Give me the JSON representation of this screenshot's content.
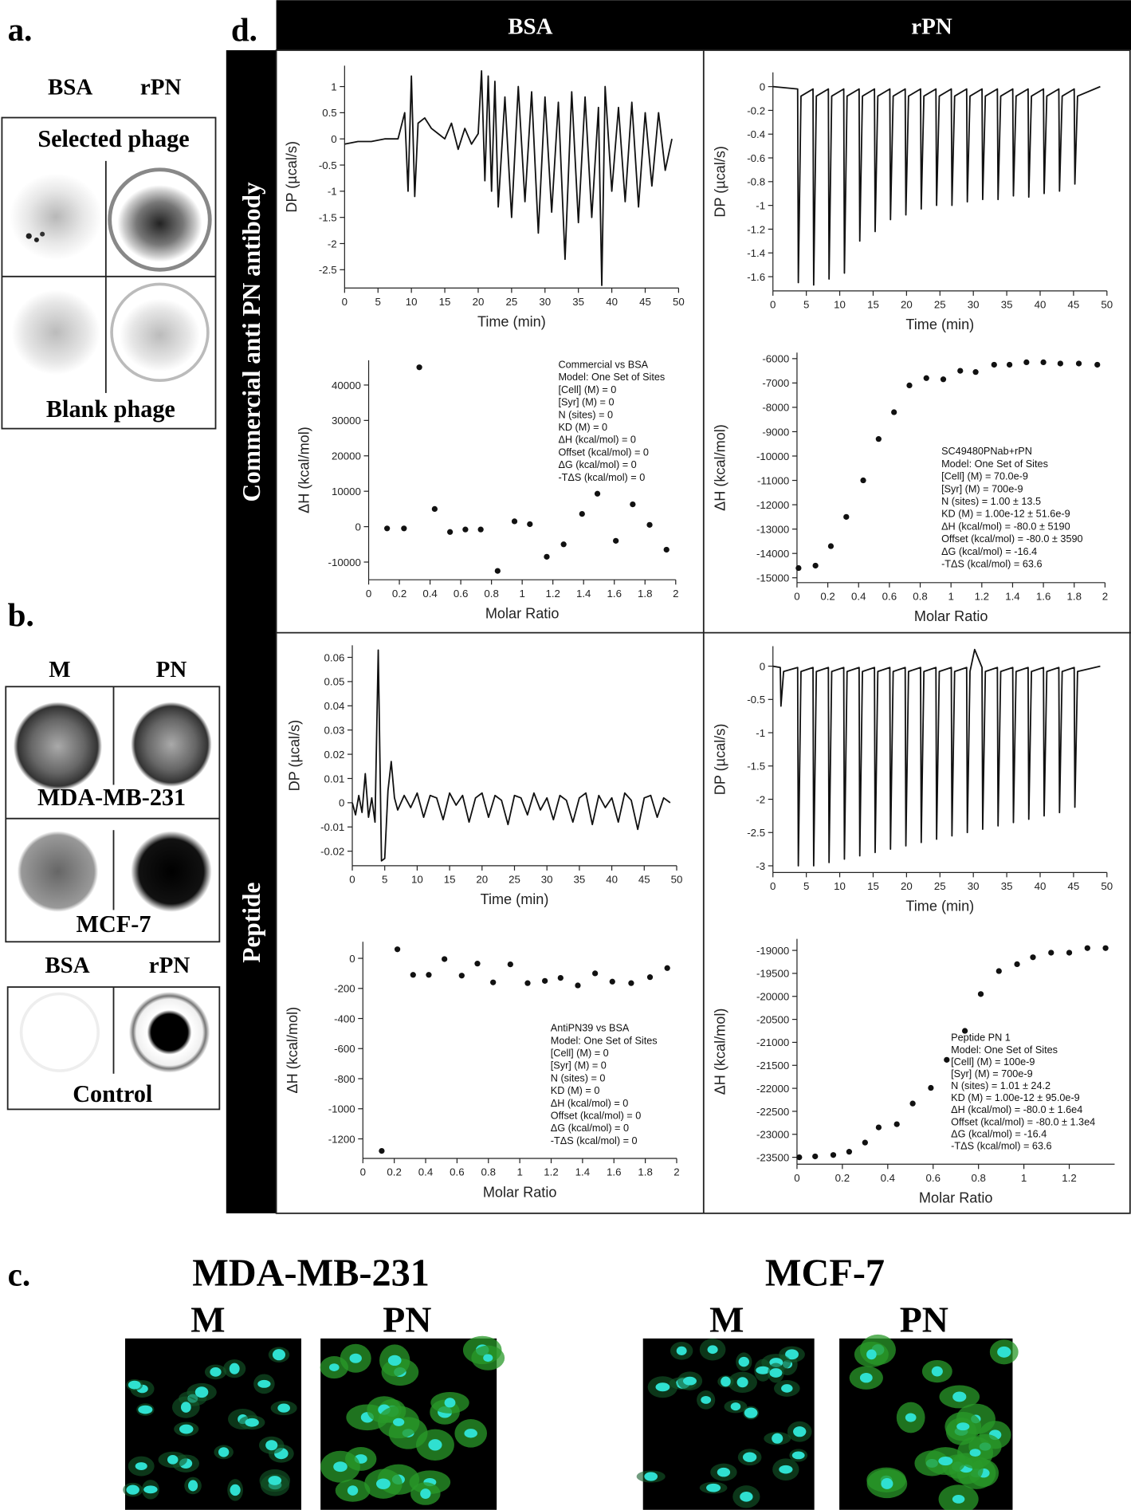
{
  "panels": {
    "a": {
      "label": "a.",
      "columns": [
        "BSA",
        "rPN"
      ],
      "rows": [
        "Selected phage",
        "Blank phage"
      ]
    },
    "b": {
      "label": "b.",
      "columns": [
        "M",
        "PN"
      ],
      "cell_lines": [
        "MDA-MB-231",
        "MCF-7"
      ],
      "control_columns": [
        "BSA",
        "rPN"
      ],
      "control": "Control"
    },
    "c": {
      "label": "c.",
      "groups": [
        {
          "title": "MDA-MB-231",
          "columns": [
            "M",
            "PN"
          ]
        },
        {
          "title": "MCF-7",
          "columns": [
            "M",
            "PN"
          ]
        }
      ]
    },
    "d": {
      "label": "d.",
      "columns": [
        "BSA",
        "rPN"
      ],
      "rows": [
        "Commercial anti PN antibody",
        "Peptide"
      ]
    }
  },
  "chart_data": [
    {
      "type": "line",
      "color": "#111111",
      "xlabel": "Time (min)",
      "ylabel": "DP (µcal/s)",
      "xlim": [
        0,
        50
      ],
      "xticks": [
        0,
        5,
        10,
        15,
        20,
        25,
        30,
        35,
        40,
        45,
        50
      ],
      "ylim": [
        -2.85,
        1.4
      ],
      "yticks": [
        -2.5,
        -2,
        -1.5,
        -1,
        -0.5,
        0,
        0.5,
        1
      ],
      "x": [
        0,
        2,
        4,
        6,
        8,
        9,
        9.5,
        10,
        10.5,
        11,
        12,
        13,
        14,
        15,
        16,
        17,
        18,
        19,
        20,
        20.5,
        21,
        21.5,
        22,
        22.5,
        23,
        24,
        25,
        26,
        27,
        28,
        29,
        30,
        31,
        32,
        33,
        34,
        35,
        36,
        37,
        38,
        38.5,
        39,
        40,
        41,
        42,
        43,
        44,
        45,
        46,
        47,
        48,
        49
      ],
      "values": [
        -0.1,
        -0.05,
        -0.05,
        0,
        0,
        0.5,
        -1,
        1.2,
        -1.1,
        0.3,
        0.4,
        0.2,
        0.1,
        0,
        0.3,
        -0.2,
        0.2,
        -0.1,
        0.1,
        1.3,
        -0.8,
        1.2,
        -1,
        1.1,
        -1.3,
        0.8,
        -1.5,
        1,
        -1.2,
        0.9,
        -1.8,
        0.8,
        -1.4,
        0.7,
        -2.3,
        0.9,
        -1.6,
        0.8,
        -1.5,
        0.6,
        -2.8,
        1,
        -1,
        0.6,
        -1.2,
        0.7,
        -1.3,
        0.5,
        -0.9,
        0.5,
        -0.6,
        0
      ]
    },
    {
      "type": "line",
      "color": "#111111",
      "xlabel": "Time (min)",
      "ylabel": "DP (µcal/s)",
      "xlim": [
        0,
        50
      ],
      "xticks": [
        0,
        5,
        10,
        15,
        20,
        25,
        30,
        35,
        40,
        45,
        50
      ],
      "ylim": [
        -1.72,
        0.12
      ],
      "yticks": [
        -1.6,
        -1.4,
        -1.2,
        -1,
        -0.8,
        -0.6,
        -0.4,
        -0.2,
        0
      ],
      "x": [
        0,
        3.7,
        3.8,
        4.2,
        6,
        6.1,
        6.5,
        8.3,
        8.4,
        8.8,
        10.6,
        10.7,
        11.1,
        12.9,
        13,
        13.4,
        15.2,
        15.3,
        15.7,
        17.5,
        17.6,
        18,
        19.8,
        19.9,
        20.3,
        22.1,
        22.2,
        22.6,
        24.4,
        24.5,
        24.9,
        26.7,
        26.8,
        27.2,
        29,
        29.1,
        29.5,
        31.3,
        31.4,
        31.8,
        33.6,
        33.7,
        34.1,
        35.9,
        36,
        36.4,
        38.2,
        38.3,
        38.7,
        40.5,
        40.6,
        41,
        42.8,
        42.9,
        43.3,
        45.1,
        45.2,
        45.6,
        49
      ],
      "values": [
        0,
        -0.02,
        -1.65,
        -0.08,
        -0.02,
        -1.67,
        -0.08,
        -0.02,
        -1.62,
        -0.08,
        -0.02,
        -1.57,
        -0.08,
        -0.02,
        -1.3,
        -0.08,
        -0.02,
        -1.22,
        -0.08,
        -0.02,
        -1.12,
        -0.08,
        -0.02,
        -1.08,
        -0.08,
        -0.02,
        -1.03,
        -0.08,
        -0.02,
        -1,
        -0.08,
        -0.02,
        -1,
        -0.08,
        -0.02,
        -0.97,
        -0.08,
        -0.02,
        -0.95,
        -0.08,
        -0.02,
        -0.95,
        -0.08,
        -0.02,
        -0.92,
        -0.08,
        -0.02,
        -0.93,
        -0.08,
        -0.02,
        -0.9,
        -0.08,
        -0.02,
        -0.88,
        -0.08,
        -0.02,
        -0.82,
        -0.08,
        0
      ]
    },
    {
      "type": "scatter",
      "color": "#111111",
      "xlabel": "Molar Ratio",
      "ylabel": "ΔH (kcal/mol)",
      "xlim": [
        0,
        2
      ],
      "xticks": [
        0,
        0.2,
        0.4,
        0.6,
        0.8,
        1,
        1.2,
        1.4,
        1.6,
        1.8,
        2
      ],
      "ylim": [
        -15000,
        47000
      ],
      "yticks": [
        -10000,
        0,
        10000,
        20000,
        30000,
        40000
      ],
      "x": [
        0.12,
        0.23,
        0.33,
        0.43,
        0.53,
        0.63,
        0.73,
        0.84,
        0.95,
        1.05,
        1.16,
        1.27,
        1.39,
        1.49,
        1.61,
        1.72,
        1.83,
        1.94
      ],
      "values": [
        -500,
        -500,
        45000,
        5000,
        -1500,
        -800,
        -800,
        -12500,
        1500,
        700,
        -8500,
        -5000,
        3600,
        9300,
        -4000,
        6300,
        500,
        -6500
      ],
      "annotation": [
        "Commercial vs BSA",
        "Model: One Set of Sites",
        "[Cell] (M) = 0",
        "[Syr] (M) = 0",
        "N (sites) = 0",
        "KD (M) = 0",
        "ΔH (kcal/mol) = 0",
        "Offset (kcal/mol) = 0",
        "ΔG (kcal/mol) = 0",
        "-TΔS (kcal/mol) = 0"
      ]
    },
    {
      "type": "scatter",
      "color": "#111111",
      "xlabel": "Molar Ratio",
      "ylabel": "ΔH (kcal/mol)",
      "xlim": [
        0,
        2
      ],
      "xticks": [
        0,
        0.2,
        0.4,
        0.6,
        0.8,
        1,
        1.2,
        1.4,
        1.6,
        1.8,
        2
      ],
      "ylim": [
        -15200,
        -5750
      ],
      "yticks": [
        -15000,
        -14000,
        -13000,
        -12000,
        -11000,
        -10000,
        -9000,
        -8000,
        -7000,
        -6000
      ],
      "x": [
        0.01,
        0.12,
        0.22,
        0.32,
        0.43,
        0.53,
        0.63,
        0.73,
        0.84,
        0.95,
        1.06,
        1.16,
        1.28,
        1.38,
        1.49,
        1.6,
        1.71,
        1.83,
        1.95
      ],
      "values": [
        -14600,
        -14500,
        -13700,
        -12500,
        -11000,
        -9300,
        -8200,
        -7100,
        -6800,
        -6850,
        -6500,
        -6550,
        -6250,
        -6250,
        -6150,
        -6150,
        -6200,
        -6200,
        -6250
      ],
      "annotation": [
        "SC49480PNab+rPN",
        "Model: One Set of Sites",
        "[Cell] (M) = 70.0e-9",
        "[Syr] (M) = 700e-9",
        "N (sites) = 1.00 ± 13.5",
        "KD (M) = 1.00e-12 ± 51.6e-9",
        "ΔH (kcal/mol) = -80.0 ± 5190",
        "Offset (kcal/mol) = -80.0 ± 3590",
        "ΔG (kcal/mol) = -16.4",
        "-TΔS (kcal/mol) = 63.6"
      ]
    },
    {
      "type": "line",
      "color": "#111111",
      "xlabel": "Time (min)",
      "ylabel": "DP (µcal/s)",
      "xlim": [
        0,
        50
      ],
      "xticks": [
        0,
        5,
        10,
        15,
        20,
        25,
        30,
        35,
        40,
        45,
        50
      ],
      "ylim": [
        -0.026,
        0.065
      ],
      "yticks": [
        -0.02,
        -0.01,
        0,
        0.01,
        0.02,
        0.03,
        0.04,
        0.05,
        0.06
      ],
      "x": [
        0,
        0.5,
        1,
        1.5,
        2,
        2.5,
        3,
        3.5,
        4,
        4.5,
        5,
        5.5,
        6,
        6.5,
        7,
        8,
        9,
        10,
        11,
        12,
        13,
        14,
        15,
        16,
        17,
        18,
        19,
        20,
        21,
        22,
        23,
        24,
        25,
        26,
        27,
        28,
        29,
        30,
        31,
        32,
        33,
        34,
        35,
        36,
        37,
        38,
        39,
        40,
        41,
        42,
        43,
        44,
        45,
        46,
        47,
        48,
        49
      ],
      "values": [
        0,
        -0.005,
        0.003,
        -0.004,
        0.012,
        -0.006,
        0.002,
        -0.008,
        0.063,
        -0.024,
        -0.023,
        0.005,
        0.017,
        0.002,
        -0.003,
        0.003,
        -0.002,
        0.004,
        -0.006,
        0.003,
        0.002,
        -0.007,
        0.004,
        -0.001,
        0.003,
        -0.008,
        0.002,
        0.004,
        -0.006,
        0.003,
        0.001,
        -0.009,
        0.003,
        0.002,
        -0.005,
        0.004,
        -0.003,
        0.002,
        -0.007,
        0.003,
        0.001,
        -0.008,
        0.002,
        0.004,
        -0.009,
        0.003,
        -0.002,
        0.002,
        -0.008,
        0.004,
        0.001,
        -0.011,
        0.002,
        0.003,
        -0.006,
        0.002,
        0
      ]
    },
    {
      "type": "line",
      "color": "#111111",
      "xlabel": "Time (min)",
      "ylabel": "DP (µcal/s)",
      "xlim": [
        0,
        50
      ],
      "xticks": [
        0,
        5,
        10,
        15,
        20,
        25,
        30,
        35,
        40,
        45,
        50
      ],
      "ylim": [
        -3.1,
        0.3
      ],
      "yticks": [
        -3,
        -2.5,
        -2,
        -1.5,
        -1,
        -0.5,
        0
      ],
      "x": [
        0,
        1.1,
        1.2,
        1.6,
        3.7,
        3.8,
        4.2,
        6,
        6.1,
        6.5,
        8.3,
        8.4,
        8.8,
        10.6,
        10.7,
        11.1,
        12.9,
        13,
        13.4,
        15.2,
        15.3,
        15.7,
        17.5,
        17.6,
        18,
        19.8,
        19.9,
        20.3,
        22.1,
        22.2,
        22.6,
        24.4,
        24.5,
        24.9,
        26.7,
        26.8,
        27.2,
        29,
        29.1,
        29.5,
        30.2,
        31.3,
        31.4,
        31.8,
        33.6,
        33.7,
        34.1,
        35.9,
        36,
        36.4,
        38.2,
        38.3,
        38.7,
        40.5,
        40.6,
        41,
        42.8,
        42.9,
        43.3,
        45.1,
        45.2,
        45.6,
        49
      ],
      "values": [
        0,
        -0.02,
        -0.6,
        -0.08,
        -0.02,
        -3,
        -0.08,
        -0.02,
        -3,
        -0.08,
        -0.02,
        -2.95,
        -0.08,
        -0.02,
        -2.9,
        -0.08,
        -0.02,
        -2.85,
        -0.08,
        -0.02,
        -2.8,
        -0.08,
        -0.02,
        -2.75,
        -0.08,
        -0.02,
        -2.7,
        -0.08,
        -0.02,
        -2.65,
        -0.08,
        -0.02,
        -2.6,
        -0.08,
        -0.02,
        -2.55,
        -0.08,
        -0.02,
        -2.5,
        -0.08,
        0.25,
        -0.02,
        -2.45,
        -0.08,
        -0.02,
        -2.4,
        -0.08,
        -0.02,
        -2.35,
        -0.08,
        -0.02,
        -2.3,
        -0.08,
        -0.02,
        -2.25,
        -0.08,
        -0.02,
        -2.2,
        -0.08,
        -0.02,
        -2.12,
        -0.08,
        0
      ]
    },
    {
      "type": "scatter",
      "color": "#111111",
      "xlabel": "Molar Ratio",
      "ylabel": "ΔH (kcal/mol)",
      "xlim": [
        0,
        2
      ],
      "xticks": [
        0,
        0.2,
        0.4,
        0.6,
        0.8,
        1,
        1.2,
        1.4,
        1.6,
        1.8,
        2
      ],
      "ylim": [
        -1330,
        110
      ],
      "yticks": [
        -1200,
        -1000,
        -800,
        -600,
        -400,
        -200,
        0
      ],
      "x": [
        0.12,
        0.22,
        0.32,
        0.42,
        0.52,
        0.63,
        0.73,
        0.83,
        0.94,
        1.05,
        1.16,
        1.26,
        1.37,
        1.48,
        1.59,
        1.71,
        1.83,
        1.94
      ],
      "values": [
        -1280,
        60,
        -110,
        -110,
        -5,
        -115,
        -35,
        -160,
        -40,
        -165,
        -150,
        -130,
        -180,
        -100,
        -155,
        -165,
        -125,
        -65
      ],
      "annotation": [
        "AntiPN39 vs BSA",
        "Model: One Set of Sites",
        "[Cell] (M) = 0",
        "[Syr] (M) = 0",
        "N (sites) = 0",
        "KD (M) = 0",
        "ΔH (kcal/mol) = 0",
        "Offset (kcal/mol) = 0",
        "ΔG (kcal/mol) = 0",
        "-TΔS (kcal/mol) = 0"
      ]
    },
    {
      "type": "scatter",
      "color": "#111111",
      "xlabel": "Molar Ratio",
      "ylabel": "ΔH (kcal/mol)",
      "xlim": [
        0,
        1.4
      ],
      "xticks": [
        0,
        0.2,
        0.4,
        0.6,
        0.8,
        1,
        1.2
      ],
      "ylim": [
        -23650,
        -18750
      ],
      "yticks": [
        -23500,
        -23000,
        -22500,
        -22000,
        -21500,
        -21000,
        -20500,
        -20000,
        -19500,
        -19000
      ],
      "x": [
        0.01,
        0.08,
        0.16,
        0.23,
        0.3,
        0.36,
        0.44,
        0.51,
        0.59,
        0.66,
        0.74,
        0.81,
        0.89,
        0.97,
        1.04,
        1.12,
        1.2,
        1.28,
        1.36
      ],
      "values": [
        -23500,
        -23480,
        -23450,
        -23380,
        -23180,
        -22850,
        -22780,
        -22330,
        -21990,
        -21380,
        -20750,
        -19950,
        -19450,
        -19300,
        -19150,
        -19050,
        -19050,
        -18950,
        -18950
      ],
      "annotation": [
        "Peptide PN 1",
        "Model: One Set of Sites",
        "[Cell] (M) = 100e-9",
        "[Syr] (M) = 700e-9",
        "N (sites) = 1.01 ± 24.2",
        "KD (M) = 1.00e-12 ± 95.0e-9",
        "ΔH (kcal/mol) = -80.0 ± 1.6e4",
        "Offset (kcal/mol) = -80.0 ± 1.3e4",
        "ΔG (kcal/mol) = -16.4",
        "-TΔS (kcal/mol) = 63.6"
      ]
    }
  ]
}
